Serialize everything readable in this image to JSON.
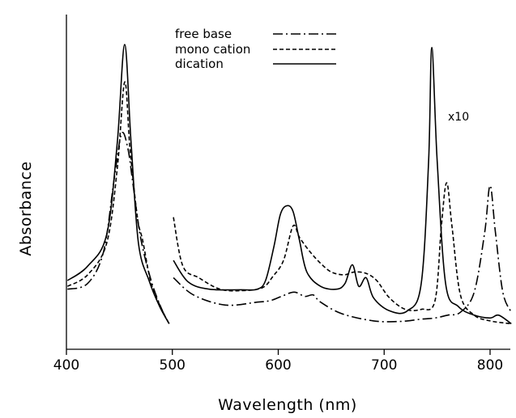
{
  "chart_data": {
    "type": "line",
    "xlabel": "Wavelength (nm)",
    "ylabel": "Absorbance",
    "xlim": [
      400,
      820
    ],
    "ylim": [
      0,
      1
    ],
    "x_ticks": [
      "400",
      "500",
      "600",
      "700",
      "800"
    ],
    "annotation": {
      "text": "x10",
      "x": 755,
      "y": 0.73
    },
    "legend_position": "top-center",
    "series": [
      {
        "name": "free base",
        "dash": "dashdot",
        "segments": [
          [
            [
              401,
              0.13
            ],
            [
              420,
              0.15
            ],
            [
              435,
              0.26
            ],
            [
              445,
              0.51
            ],
            [
              452,
              0.67
            ],
            [
              458,
              0.62
            ],
            [
              463,
              0.49
            ],
            [
              470,
              0.31
            ],
            [
              480,
              0.16
            ],
            [
              490,
              0.06
            ],
            [
              497,
              0.01
            ]
          ],
          [
            [
              501,
              0.17
            ],
            [
              520,
              0.11
            ],
            [
              550,
              0.075
            ],
            [
              580,
              0.085
            ],
            [
              592,
              0.09
            ],
            [
              603,
              0.105
            ],
            [
              615,
              0.12
            ],
            [
              625,
              0.105
            ],
            [
              633,
              0.11
            ],
            [
              640,
              0.085
            ],
            [
              660,
              0.045
            ],
            [
              690,
              0.02
            ],
            [
              715,
              0.018
            ],
            [
              735,
              0.026
            ],
            [
              748,
              0.03
            ],
            [
              760,
              0.04
            ],
            [
              772,
              0.05
            ],
            [
              785,
              0.12
            ],
            [
              795,
              0.33
            ],
            [
              800,
              0.49
            ],
            [
              805,
              0.33
            ],
            [
              812,
              0.12
            ],
            [
              820,
              0.05
            ]
          ]
        ]
      },
      {
        "name": "mono cation",
        "dash": "dashed",
        "segments": [
          [
            [
              401,
              0.14
            ],
            [
              420,
              0.18
            ],
            [
              438,
              0.29
            ],
            [
              448,
              0.55
            ],
            [
              455,
              0.85
            ],
            [
              460,
              0.62
            ],
            [
              467,
              0.38
            ],
            [
              472,
              0.3
            ],
            [
              480,
              0.15
            ],
            [
              490,
              0.06
            ],
            [
              497,
              0.01
            ]
          ],
          [
            [
              501,
              0.38
            ],
            [
              510,
              0.21
            ],
            [
              525,
              0.17
            ],
            [
              545,
              0.13
            ],
            [
              565,
              0.125
            ],
            [
              585,
              0.135
            ],
            [
              595,
              0.175
            ],
            [
              605,
              0.23
            ],
            [
              614,
              0.35
            ],
            [
              620,
              0.31
            ],
            [
              630,
              0.26
            ],
            [
              640,
              0.22
            ],
            [
              650,
              0.19
            ],
            [
              662,
              0.18
            ],
            [
              672,
              0.19
            ],
            [
              683,
              0.185
            ],
            [
              693,
              0.16
            ],
            [
              705,
              0.1
            ],
            [
              720,
              0.06
            ],
            [
              735,
              0.06
            ],
            [
              748,
              0.09
            ],
            [
              754,
              0.35
            ],
            [
              759,
              0.5
            ],
            [
              764,
              0.35
            ],
            [
              772,
              0.11
            ],
            [
              785,
              0.04
            ],
            [
              800,
              0.02
            ],
            [
              820,
              0.01
            ]
          ]
        ]
      },
      {
        "name": "dication",
        "dash": "solid",
        "segments": [
          [
            [
              401,
              0.16
            ],
            [
              420,
              0.21
            ],
            [
              438,
              0.32
            ],
            [
              448,
              0.64
            ],
            [
              455,
              0.98
            ],
            [
              461,
              0.64
            ],
            [
              468,
              0.29
            ],
            [
              478,
              0.16
            ],
            [
              488,
              0.07
            ],
            [
              497,
              0.01
            ]
          ],
          [
            [
              501,
              0.23
            ],
            [
              515,
              0.155
            ],
            [
              535,
              0.13
            ],
            [
              565,
              0.128
            ],
            [
              580,
              0.13
            ],
            [
              588,
              0.16
            ],
            [
              596,
              0.28
            ],
            [
              602,
              0.39
            ],
            [
              608,
              0.42
            ],
            [
              614,
              0.4
            ],
            [
              620,
              0.3
            ],
            [
              627,
              0.19
            ],
            [
              640,
              0.14
            ],
            [
              655,
              0.13
            ],
            [
              663,
              0.15
            ],
            [
              670,
              0.215
            ],
            [
              676,
              0.14
            ],
            [
              683,
              0.17
            ],
            [
              690,
              0.1
            ],
            [
              705,
              0.055
            ],
            [
              722,
              0.055
            ],
            [
              735,
              0.15
            ],
            [
              742,
              0.58
            ],
            [
              745,
              0.97
            ],
            [
              750,
              0.58
            ],
            [
              758,
              0.15
            ],
            [
              770,
              0.07
            ],
            [
              785,
              0.04
            ],
            [
              800,
              0.03
            ],
            [
              808,
              0.04
            ],
            [
              820,
              0.01
            ]
          ]
        ]
      }
    ]
  }
}
